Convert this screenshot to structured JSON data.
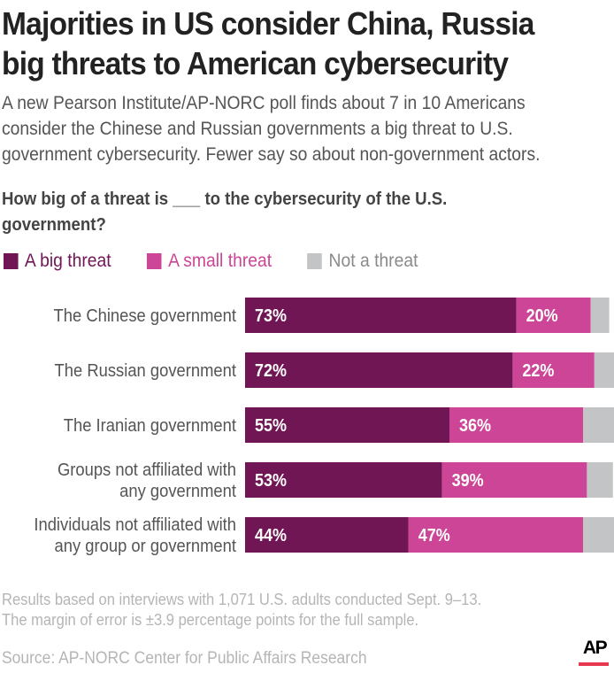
{
  "title": "Majorities in US consider China, Russia big threats to American cybersecurity",
  "title_lines": [
    "Majorities in US consider China, Russia",
    "big threats to American cybersecurity"
  ],
  "subtitle_lines": [
    "A new Pearson Institute/AP-NORC poll finds about 7 in 10 Americans",
    "consider the Chinese and Russian governments a big threat to U.S.",
    "government cybersecurity. Fewer say so about non-government actors."
  ],
  "question_lines": [
    "How big of a threat is ___ to the cybersecurity of the U.S.",
    "government?"
  ],
  "legend": [
    {
      "label": "A big threat",
      "color": "#701655"
    },
    {
      "label": "A small threat",
      "color": "#cc4596"
    },
    {
      "label": "Not a threat",
      "color": "#c3c4c6"
    }
  ],
  "footnote_lines": [
    "Results based on interviews with 1,071 U.S. adults conducted Sept. 9–13.",
    "The margin of error is ±3.9 percentage points for the full sample."
  ],
  "source": "Source: AP-NORC Center for Public Affairs Research",
  "logo": {
    "text": "AP",
    "accent": "#e8384f"
  },
  "chart_data": {
    "type": "bar",
    "orientation": "horizontal",
    "stacked": true,
    "title": "How big of a threat is ___ to the cybersecurity of the U.S. government?",
    "xlabel": "",
    "ylabel": "",
    "xlim": [
      0,
      100
    ],
    "unit": "%",
    "grid": false,
    "legend_position": "top-left",
    "categories": [
      [
        "The Chinese government"
      ],
      [
        "The Russian government"
      ],
      [
        "The Iranian government"
      ],
      [
        "Groups not affiliated with",
        "any government"
      ],
      [
        "Individuals not affiliated with",
        "any group or government"
      ]
    ],
    "series": [
      {
        "name": "A big threat",
        "color": "#701655",
        "values": [
          73,
          72,
          55,
          53,
          44
        ],
        "labels": [
          "73%",
          "72%",
          "55%",
          "53%",
          "44%"
        ]
      },
      {
        "name": "A small threat",
        "color": "#cc4596",
        "values": [
          20,
          22,
          36,
          39,
          47
        ],
        "labels": [
          "20%",
          "22%",
          "36%",
          "39%",
          "47%"
        ]
      },
      {
        "name": "Not a threat",
        "color": "#c3c4c6",
        "values": [
          5,
          6,
          9,
          7,
          9
        ],
        "labels": [
          "",
          "",
          "",
          "",
          ""
        ]
      }
    ]
  }
}
